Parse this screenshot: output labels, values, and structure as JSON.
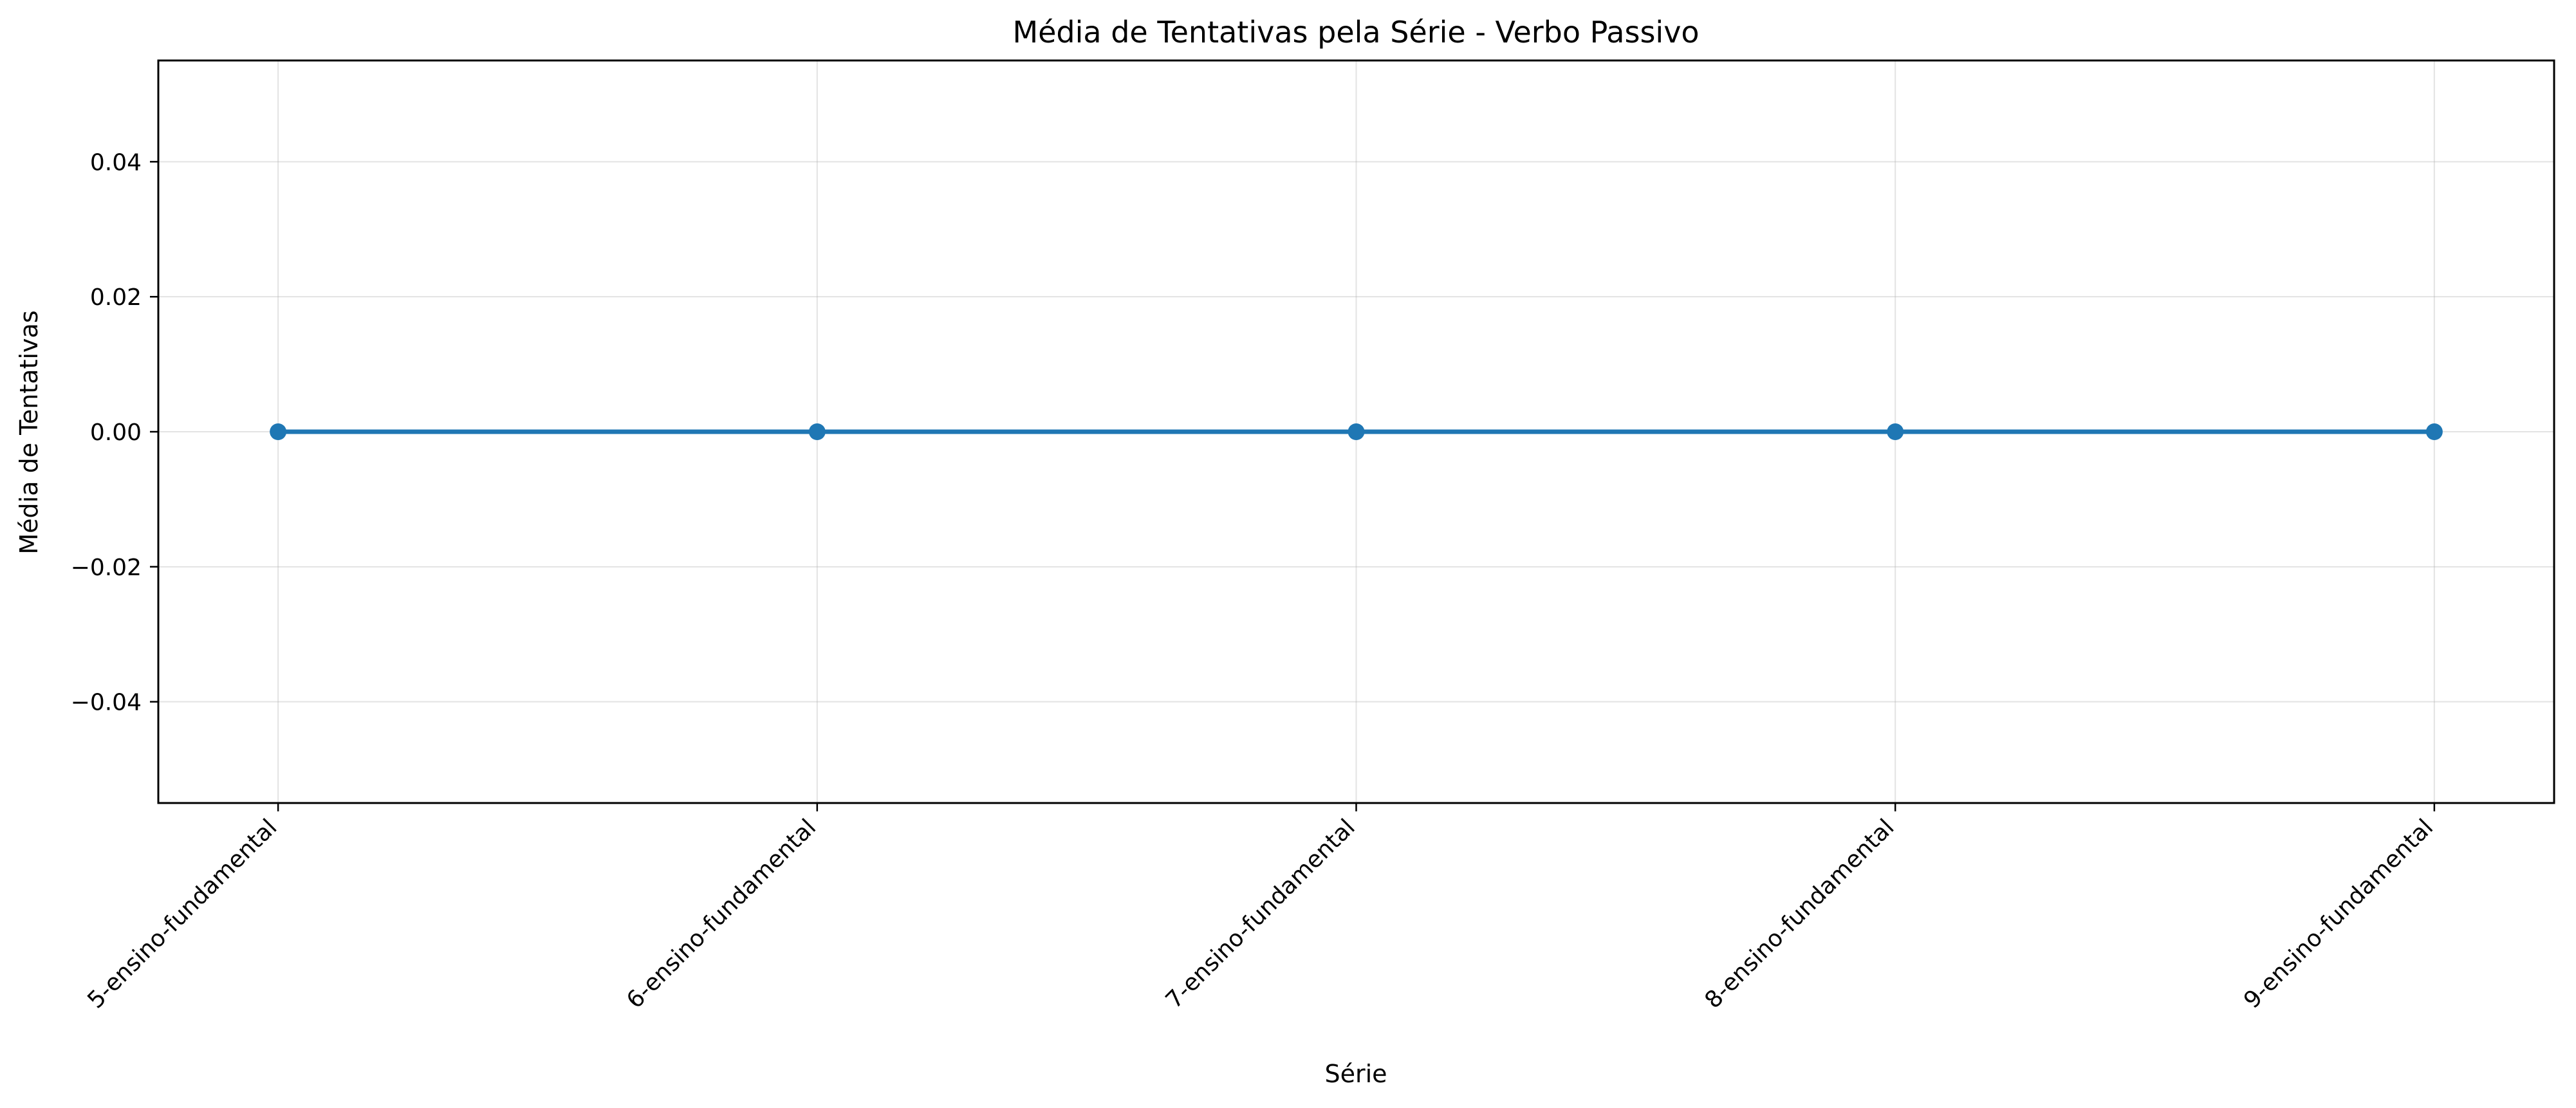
{
  "chart_data": {
    "type": "line",
    "title": "Média de Tentativas pela Série - Verbo Passivo",
    "xlabel": "Série",
    "ylabel": "Média de Tentativas",
    "categories": [
      "5-ensino-fundamental",
      "6-ensino-fundamental",
      "7-ensino-fundamental",
      "8-ensino-fundamental",
      "9-ensino-fundamental"
    ],
    "series": [
      {
        "values": [
          0,
          0,
          0,
          0,
          0
        ],
        "color": "#1f77b4",
        "marker": "circle"
      }
    ],
    "ylim": [
      -0.055,
      0.055
    ],
    "yticks": [
      -0.04,
      -0.02,
      0.0,
      0.02,
      0.04
    ],
    "ytick_labels": [
      "−0.04",
      "−0.02",
      "0.00",
      "0.02",
      "0.04"
    ],
    "grid": true,
    "legend": "none"
  }
}
